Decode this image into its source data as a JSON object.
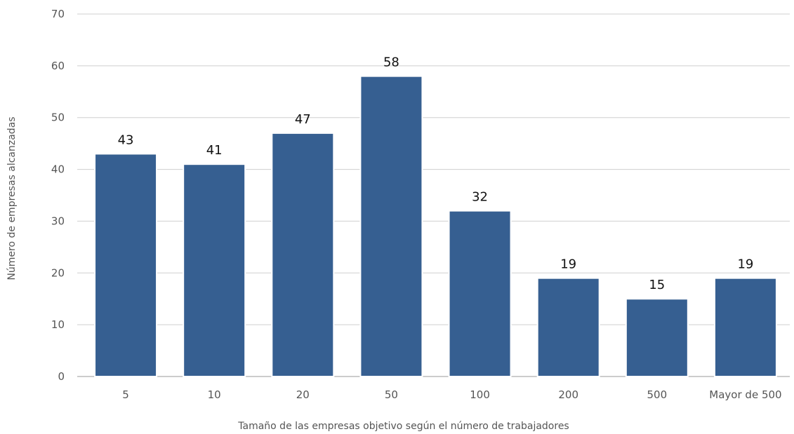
{
  "chart_data": {
    "type": "bar",
    "title": "",
    "xlabel": "Tamaño de las empresas objetivo según el número de trabajadores",
    "ylabel": "Número de empresas alcanzadas",
    "categories": [
      "5",
      "10",
      "20",
      "50",
      "100",
      "200",
      "500",
      "Mayor de 500"
    ],
    "values": [
      43,
      41,
      47,
      58,
      32,
      19,
      15,
      19
    ],
    "ylim": [
      0,
      70
    ],
    "yticks": [
      0,
      10,
      20,
      30,
      40,
      50,
      60,
      70
    ],
    "grid": true,
    "legend": "none",
    "bar_color": "#365f91",
    "data_labels": true
  }
}
